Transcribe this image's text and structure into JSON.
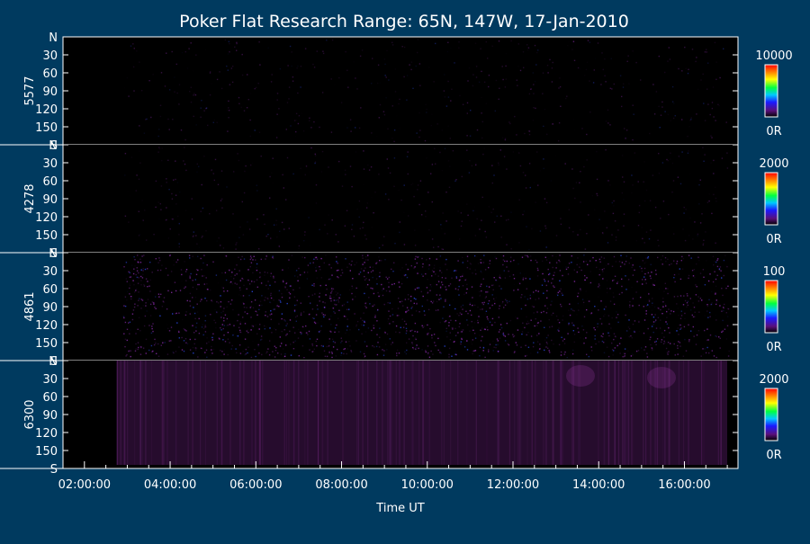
{
  "colors": {
    "background": "#003a5f",
    "panel": "#000000",
    "foreground": "#ffffff",
    "emission_tint": "#8a2aa0"
  },
  "chart_data": {
    "type": "heatmap",
    "title": "Poker Flat Research Range: 65N, 147W, 17-Jan-2010",
    "xlabel": "Time UT",
    "x_ticks": [
      "02:00:00",
      "04:00:00",
      "06:00:00",
      "08:00:00",
      "10:00:00",
      "12:00:00",
      "14:00:00",
      "16:00:00"
    ],
    "x_range_hours": [
      1.5,
      17.25
    ],
    "y_ticks": [
      "N",
      "30",
      "60",
      "90",
      "120",
      "150",
      "S"
    ],
    "colorbar_palette": "rainbow",
    "panels": [
      {
        "wavelength": "5577",
        "cbar_max": "10000",
        "cbar_min": "0R",
        "intensity": "very low",
        "data_start_hour": 2.9
      },
      {
        "wavelength": "4278",
        "cbar_max": "2000",
        "cbar_min": "0R",
        "intensity": "very low",
        "data_start_hour": 2.9
      },
      {
        "wavelength": "4861",
        "cbar_max": "100",
        "cbar_min": "0R",
        "intensity": "noisy low",
        "data_start_hour": 2.9
      },
      {
        "wavelength": "6300",
        "cbar_max": "2000",
        "cbar_min": "0R",
        "intensity": "low",
        "data_start_hour": 2.75
      }
    ]
  }
}
